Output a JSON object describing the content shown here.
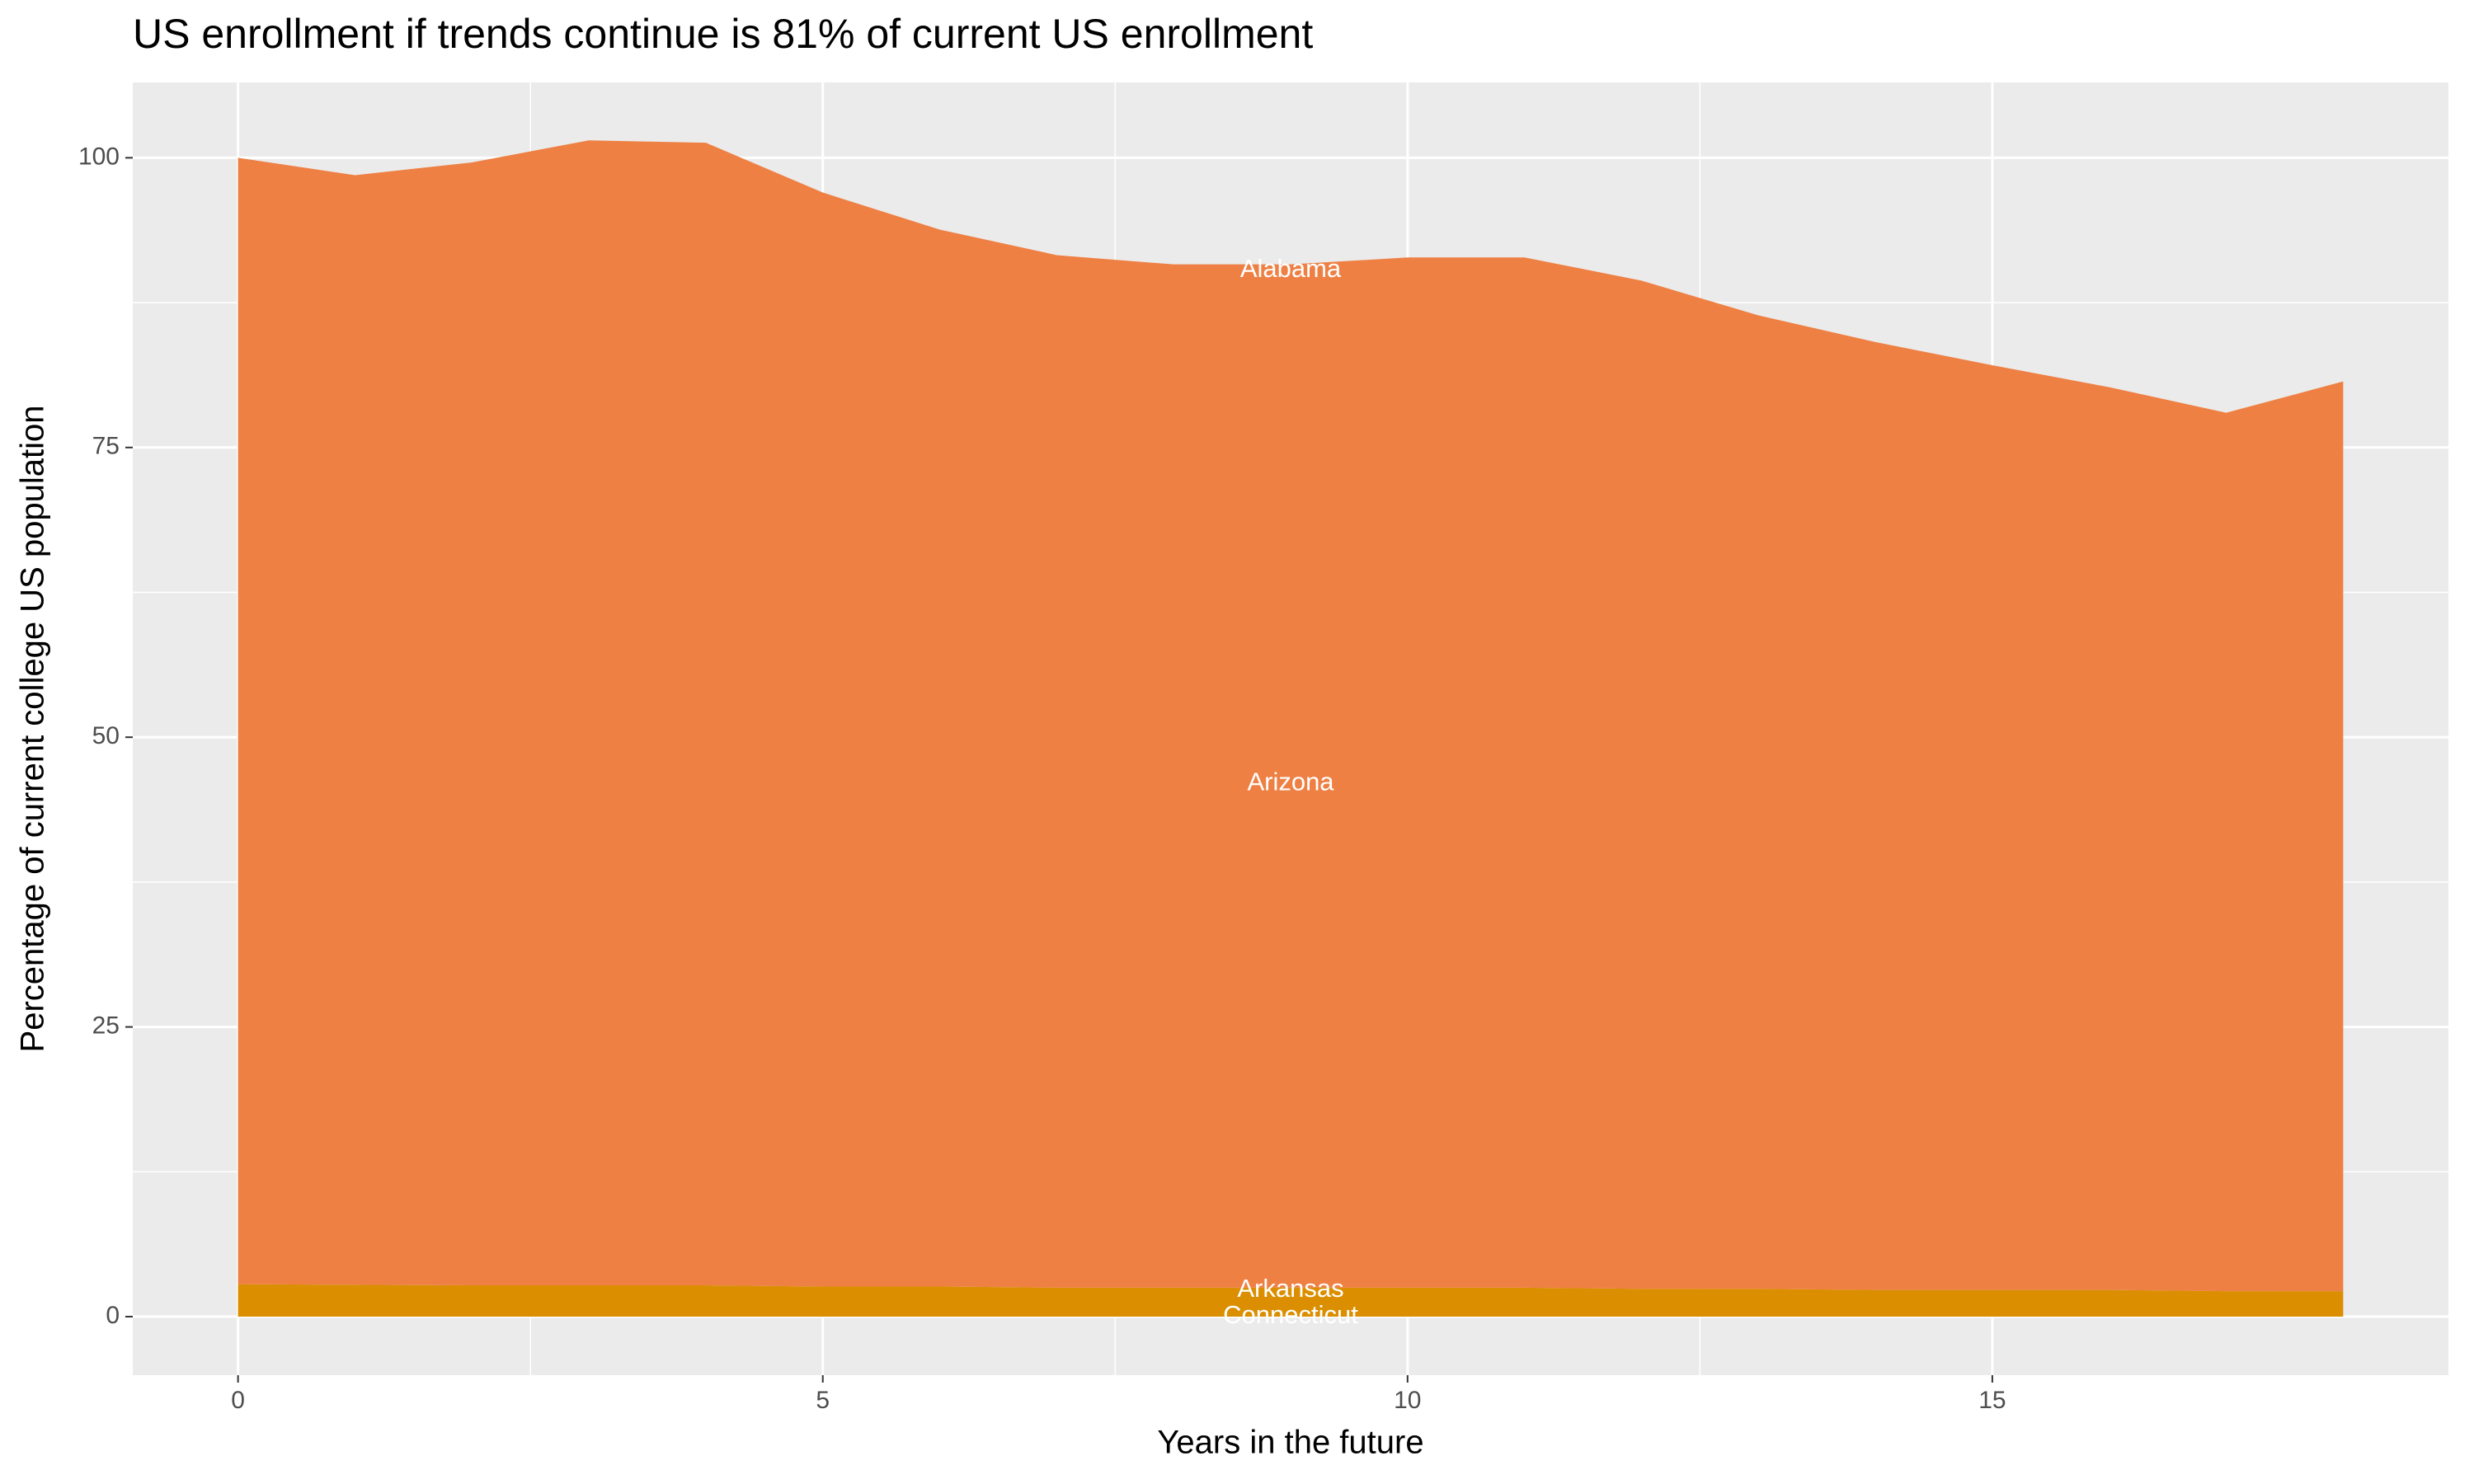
{
  "chart_data": {
    "type": "stacked-area",
    "title": "US enrollment if trends continue is 81% of current US enrollment",
    "x_label": "Years in the future",
    "y_label": "Percentage of current college US population",
    "x": [
      0,
      1,
      2,
      3,
      4,
      5,
      6,
      7,
      8,
      9,
      10,
      11,
      12,
      13,
      14,
      15,
      16,
      17,
      18
    ],
    "series": [
      {
        "color": "#db8f00",
        "values": [
          2.8,
          2.75,
          2.7,
          2.7,
          2.7,
          2.6,
          2.6,
          2.5,
          2.5,
          2.5,
          2.5,
          2.5,
          2.4,
          2.4,
          2.3,
          2.3,
          2.3,
          2.2,
          2.2
        ]
      },
      {
        "color": "#ee8044",
        "values": [
          97.2,
          95.75,
          96.9,
          98.8,
          98.6,
          94.4,
          91.2,
          89.1,
          88.3,
          88.3,
          88.9,
          88.9,
          87.0,
          84.0,
          81.8,
          79.8,
          77.9,
          75.8,
          78.5
        ]
      }
    ],
    "annotations": [
      {
        "text": "Alabama",
        "x": 9,
        "y": 90.3
      },
      {
        "text": "Arizona",
        "x": 9,
        "y": 46
      },
      {
        "text": "Arkansas",
        "x": 9,
        "y": 2.3
      },
      {
        "text": "Connecticut",
        "x": 9,
        "y": 0
      }
    ],
    "xlim": [
      -0.9,
      18.9
    ],
    "ylim": [
      -5.05,
      106.5
    ],
    "xticks": [
      0,
      5,
      10,
      15
    ],
    "yticks": [
      0,
      25,
      50,
      75,
      100
    ],
    "grid": true
  }
}
